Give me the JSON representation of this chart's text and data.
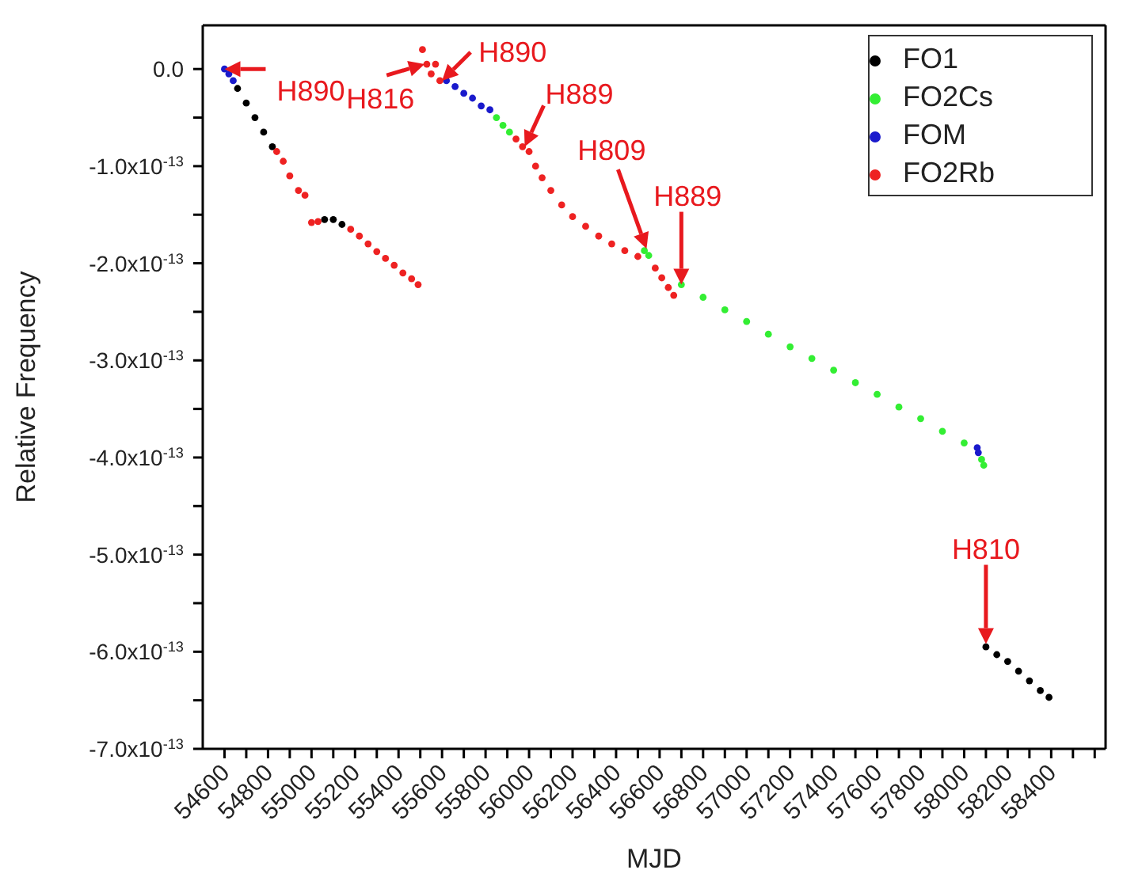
{
  "chart_data": {
    "type": "scatter",
    "xlabel": "MJD",
    "ylabel": "Relative Frequency",
    "xlim": [
      54500,
      58650
    ],
    "xticks": [
      54600,
      {
        "value": 54700,
        "label": null
      },
      54800,
      {
        "value": 54900,
        "label": null
      },
      55000,
      {
        "value": 55100,
        "label": null
      },
      55200,
      {
        "value": 55300,
        "label": null
      },
      55400,
      {
        "value": 55500,
        "label": null
      },
      55600,
      {
        "value": 55700,
        "label": null
      },
      55800,
      {
        "value": 55900,
        "label": null
      },
      56000,
      {
        "value": 56100,
        "label": null
      },
      56200,
      {
        "value": 56300,
        "label": null
      },
      56400,
      {
        "value": 56500,
        "label": null
      },
      56600,
      {
        "value": 56700,
        "label": null
      },
      56800,
      {
        "value": 56900,
        "label": null
      },
      57000,
      {
        "value": 57100,
        "label": null
      },
      57200,
      {
        "value": 57300,
        "label": null
      },
      57400,
      {
        "value": 57500,
        "label": null
      },
      57600,
      {
        "value": 57700,
        "label": null
      },
      57800,
      {
        "value": 57900,
        "label": null
      },
      58000,
      {
        "value": 58100,
        "label": null
      },
      58200,
      {
        "value": 58300,
        "label": null
      },
      58400,
      {
        "value": 58500,
        "label": null
      },
      {
        "value": 58600,
        "label": null
      }
    ],
    "ylim": [
      -7e-13,
      4.5e-14
    ],
    "yticks": [
      {
        "value": 0,
        "label": "0.0"
      },
      {
        "value": -5e-14,
        "label": null
      },
      {
        "value": -1e-13,
        "label": "-1.0x10$^{-13}$"
      },
      {
        "value": -1.5e-13,
        "label": null
      },
      {
        "value": -2e-13,
        "label": "-2.0x10$^{-13}$"
      },
      {
        "value": -2.5e-13,
        "label": null
      },
      {
        "value": -3e-13,
        "label": "-3.0x10$^{-13}$"
      },
      {
        "value": -3.5e-13,
        "label": null
      },
      {
        "value": -4e-13,
        "label": "-4.0x10$^{-13}$"
      },
      {
        "value": -4.5e-13,
        "label": null
      },
      {
        "value": -5e-13,
        "label": "-5.0x10$^{-13}$"
      },
      {
        "value": -5.5e-13,
        "label": null
      },
      {
        "value": -6e-13,
        "label": "-6.0x10$^{-13}$"
      },
      {
        "value": -6.5e-13,
        "label": null
      },
      {
        "value": -7e-13,
        "label": "-7.0x10$^{-13}$"
      }
    ],
    "legend": "top right",
    "marker": "circle",
    "series": [
      {
        "name": "FO1",
        "color": "#000000",
        "x": [
          54660,
          54700,
          54740,
          54780,
          54820,
          55060,
          55100,
          55140,
          58100,
          58150,
          58200,
          58250,
          58300,
          58350,
          58390
        ],
        "values": [
          -2e-14,
          -3.5e-14,
          -5e-14,
          -6.5e-14,
          -8e-14,
          -1.55e-13,
          -1.55e-13,
          -1.6e-13,
          -5.95e-13,
          -6.03e-13,
          -6.1e-13,
          -6.2e-13,
          -6.3e-13,
          -6.4e-13,
          -6.47e-13
        ]
      },
      {
        "name": "FO2Cs",
        "color": "#33ee33",
        "x": [
          55850,
          55880,
          55910,
          56530,
          56550,
          56700,
          56800,
          56900,
          57000,
          57100,
          57200,
          57300,
          57400,
          57500,
          57600,
          57700,
          57800,
          57900,
          58000,
          58080,
          58090
        ],
        "values": [
          -5e-14,
          -5.8e-14,
          -6.5e-14,
          -1.87e-13,
          -1.92e-13,
          -2.22e-13,
          -2.35e-13,
          -2.48e-13,
          -2.6e-13,
          -2.73e-13,
          -2.86e-13,
          -2.98e-13,
          -3.1e-13,
          -3.23e-13,
          -3.35e-13,
          -3.48e-13,
          -3.6e-13,
          -3.73e-13,
          -3.85e-13,
          -4.02e-13,
          -4.08e-13
        ]
      },
      {
        "name": "FOM",
        "color": "#1a1acc",
        "x": [
          54600,
          54620,
          54640,
          55620,
          55660,
          55700,
          55740,
          55780,
          55820,
          58060,
          58065
        ],
        "values": [
          0,
          -5e-15,
          -1.2e-14,
          -1.2e-14,
          -1.8e-14,
          -2.5e-14,
          -3e-14,
          -3.8e-14,
          -4.2e-14,
          -3.9e-13,
          -3.95e-13
        ]
      },
      {
        "name": "FO2Rb",
        "color": "#ee2222",
        "x": [
          54840,
          54870,
          54900,
          54940,
          54970,
          55000,
          55030,
          55180,
          55220,
          55260,
          55300,
          55340,
          55380,
          55420,
          55460,
          55490,
          55510,
          55530,
          55550,
          55570,
          55590,
          55940,
          55970,
          56000,
          56030,
          56060,
          56100,
          56150,
          56200,
          56260,
          56320,
          56380,
          56440,
          56500,
          56580,
          56610,
          56640,
          56665
        ],
        "values": [
          -8.5e-14,
          -9.5e-14,
          -1.1e-13,
          -1.25e-13,
          -1.3e-13,
          -1.58e-13,
          -1.57e-13,
          -1.65e-13,
          -1.72e-13,
          -1.8e-13,
          -1.88e-13,
          -1.95e-13,
          -2.02e-13,
          -2.1e-13,
          -2.16e-13,
          -2.22e-13,
          2e-14,
          5e-15,
          -5e-15,
          5e-15,
          -1.2e-14,
          -7.2e-14,
          -8e-14,
          -8.5e-14,
          -1e-13,
          -1.12e-13,
          -1.25e-13,
          -1.4e-13,
          -1.52e-13,
          -1.62e-13,
          -1.72e-13,
          -1.8e-13,
          -1.87e-13,
          -1.93e-13,
          -2.05e-13,
          -2.15e-13,
          -2.25e-13,
          -2.33e-13
        ]
      }
    ],
    "annotations": [
      {
        "text": "H890",
        "x": 54600,
        "y": 0
      },
      {
        "text": "H816",
        "x": 55520,
        "y": 5e-15
      },
      {
        "text": "H890",
        "x": 55600,
        "y": -1.2e-14
      },
      {
        "text": "H889",
        "x": 55980,
        "y": -8e-14
      },
      {
        "text": "H809",
        "x": 56540,
        "y": -1.85e-13
      },
      {
        "text": "H889",
        "x": 56700,
        "y": -2.22e-13
      },
      {
        "text": "H810",
        "x": 58100,
        "y": -5.92e-13
      }
    ]
  }
}
